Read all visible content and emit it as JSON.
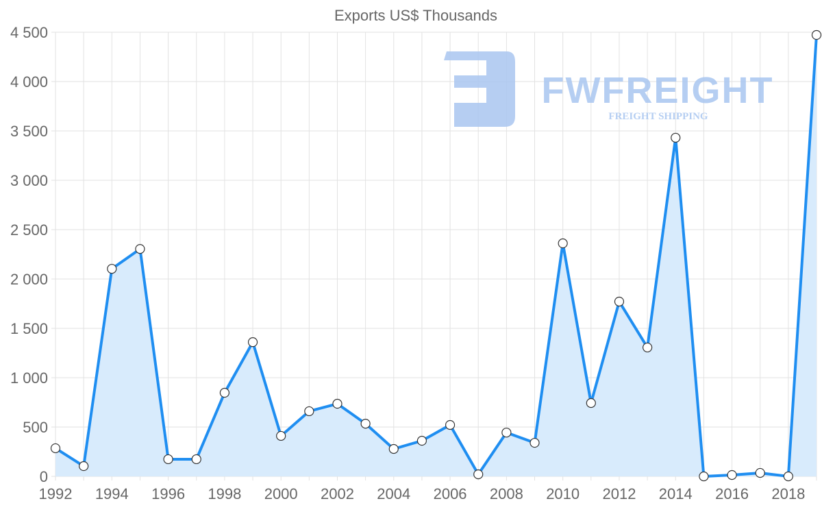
{
  "chart_data": {
    "type": "area",
    "title": "Exports US$ Thousands",
    "xlabel": "",
    "ylabel": "",
    "x": [
      1992,
      1993,
      1994,
      1995,
      1996,
      1997,
      1998,
      1999,
      2000,
      2001,
      2002,
      2003,
      2004,
      2005,
      2006,
      2007,
      2008,
      2009,
      2010,
      2011,
      2012,
      2013,
      2014,
      2015,
      2016,
      2017,
      2018,
      2019
    ],
    "series": [
      {
        "name": "Exports US$ Thousands",
        "values": [
          285,
          104,
          2103,
          2304,
          174,
          174,
          847,
          1360,
          410,
          660,
          736,
          534,
          278,
          361,
          521,
          21,
          444,
          340,
          2361,
          743,
          1771,
          1306,
          3431,
          0,
          14,
          35,
          0,
          4472
        ]
      }
    ],
    "xtick_labels": [
      "1992",
      "1994",
      "1996",
      "1998",
      "2000",
      "2002",
      "2004",
      "2006",
      "2008",
      "2010",
      "2012",
      "2014",
      "2016",
      "2018"
    ],
    "ytick_labels": [
      "0",
      "500",
      "1 000",
      "1 500",
      "2 000",
      "2 500",
      "3 000",
      "3 500",
      "4 000",
      "4 500"
    ],
    "ylim": [
      0,
      4500
    ],
    "xlim": [
      1992,
      2019
    ],
    "grid": true,
    "legend": "none",
    "colors": {
      "line": "#1f8ef1",
      "fill": "#d8ebfc",
      "grid": "#e2e2e2",
      "text": "#666666",
      "watermark": "#a9c6f0"
    }
  },
  "watermark": {
    "brand": "FWFREIGHT",
    "tagline": "FREIGHT SHIPPING"
  }
}
